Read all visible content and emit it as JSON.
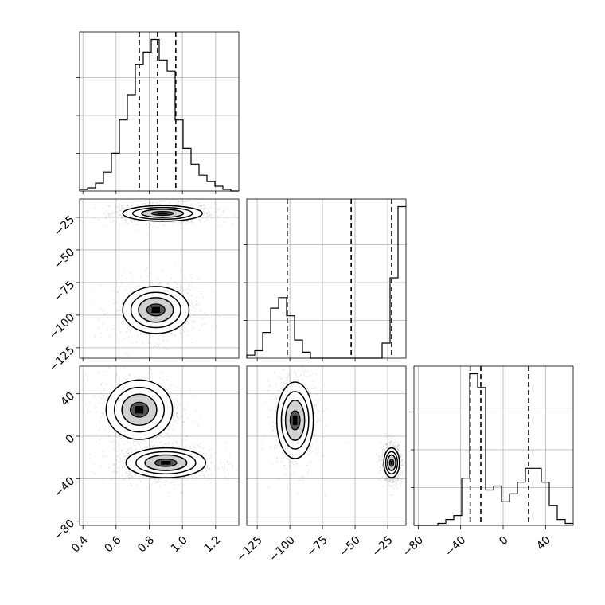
{
  "chart_data": {
    "type": "corner",
    "parameters": [
      {
        "key": "p0",
        "range": [
          0.38,
          1.34
        ],
        "ticks": [
          "0.4",
          "0.6",
          "0.8",
          "1.0",
          "1.2"
        ],
        "tick_values": [
          0.4,
          0.6,
          0.8,
          1.0,
          1.2
        ]
      },
      {
        "key": "p1",
        "range": [
          -133,
          -11
        ],
        "ticks": [
          "−125",
          "−100",
          "−75",
          "−50",
          "−25"
        ],
        "tick_values": [
          -125,
          -100,
          -75,
          -50,
          -25
        ]
      },
      {
        "key": "p2",
        "range": [
          -84,
          66
        ],
        "ticks": [
          "−80",
          "−40",
          "0",
          "40"
        ],
        "tick_values": [
          -80,
          -40,
          0,
          40
        ]
      }
    ],
    "histograms": [
      {
        "param": "p0",
        "edges_start": 0.38,
        "bin_width": 0.048,
        "counts": [
          1,
          2,
          5,
          12,
          24,
          45,
          61,
          80,
          88,
          96,
          83,
          76,
          45,
          27,
          17,
          10,
          6,
          3,
          1,
          0
        ],
        "quantiles": [
          0.74,
          0.85,
          0.96
        ]
      },
      {
        "param": "p1",
        "edges_start": -133,
        "bin_width": 6.1,
        "counts": [
          2,
          5,
          17,
          33,
          40,
          28,
          12,
          4,
          0,
          0,
          0,
          0,
          0,
          0,
          0,
          0,
          0,
          10,
          53,
          100
        ],
        "quantiles": [
          -102,
          -53,
          -22
        ]
      },
      {
        "param": "p2",
        "edges_start": -84,
        "bin_width": 7.5,
        "counts": [
          0,
          0,
          0,
          1,
          3,
          5,
          24,
          77,
          70,
          18,
          20,
          12,
          16,
          22,
          29,
          29,
          22,
          10,
          3,
          1
        ],
        "quantiles": [
          -31,
          -21,
          24
        ]
      }
    ],
    "pairs": [
      {
        "x": "p0",
        "y": "p1",
        "clusters": [
          {
            "center": [
              0.88,
              -22
            ],
            "spread": [
              0.12,
              3.0
            ],
            "weight": 0.55
          },
          {
            "center": [
              0.84,
              -96
            ],
            "spread": [
              0.1,
              9.0
            ],
            "weight": 0.45
          }
        ]
      },
      {
        "x": "p0",
        "y": "p2",
        "clusters": [
          {
            "center": [
              0.74,
              25
            ],
            "spread": [
              0.1,
              14.0
            ],
            "weight": 0.45
          },
          {
            "center": [
              0.9,
              -25
            ],
            "spread": [
              0.12,
              7.0
            ],
            "weight": 0.55
          }
        ]
      },
      {
        "x": "p1",
        "y": "p2",
        "clusters": [
          {
            "center": [
              -96,
              15
            ],
            "spread": [
              7.0,
              18.0
            ],
            "weight": 0.45
          },
          {
            "center": [
              -22,
              -25
            ],
            "spread": [
              3.0,
              7.0
            ],
            "weight": 0.55
          }
        ]
      }
    ],
    "grid": true
  }
}
